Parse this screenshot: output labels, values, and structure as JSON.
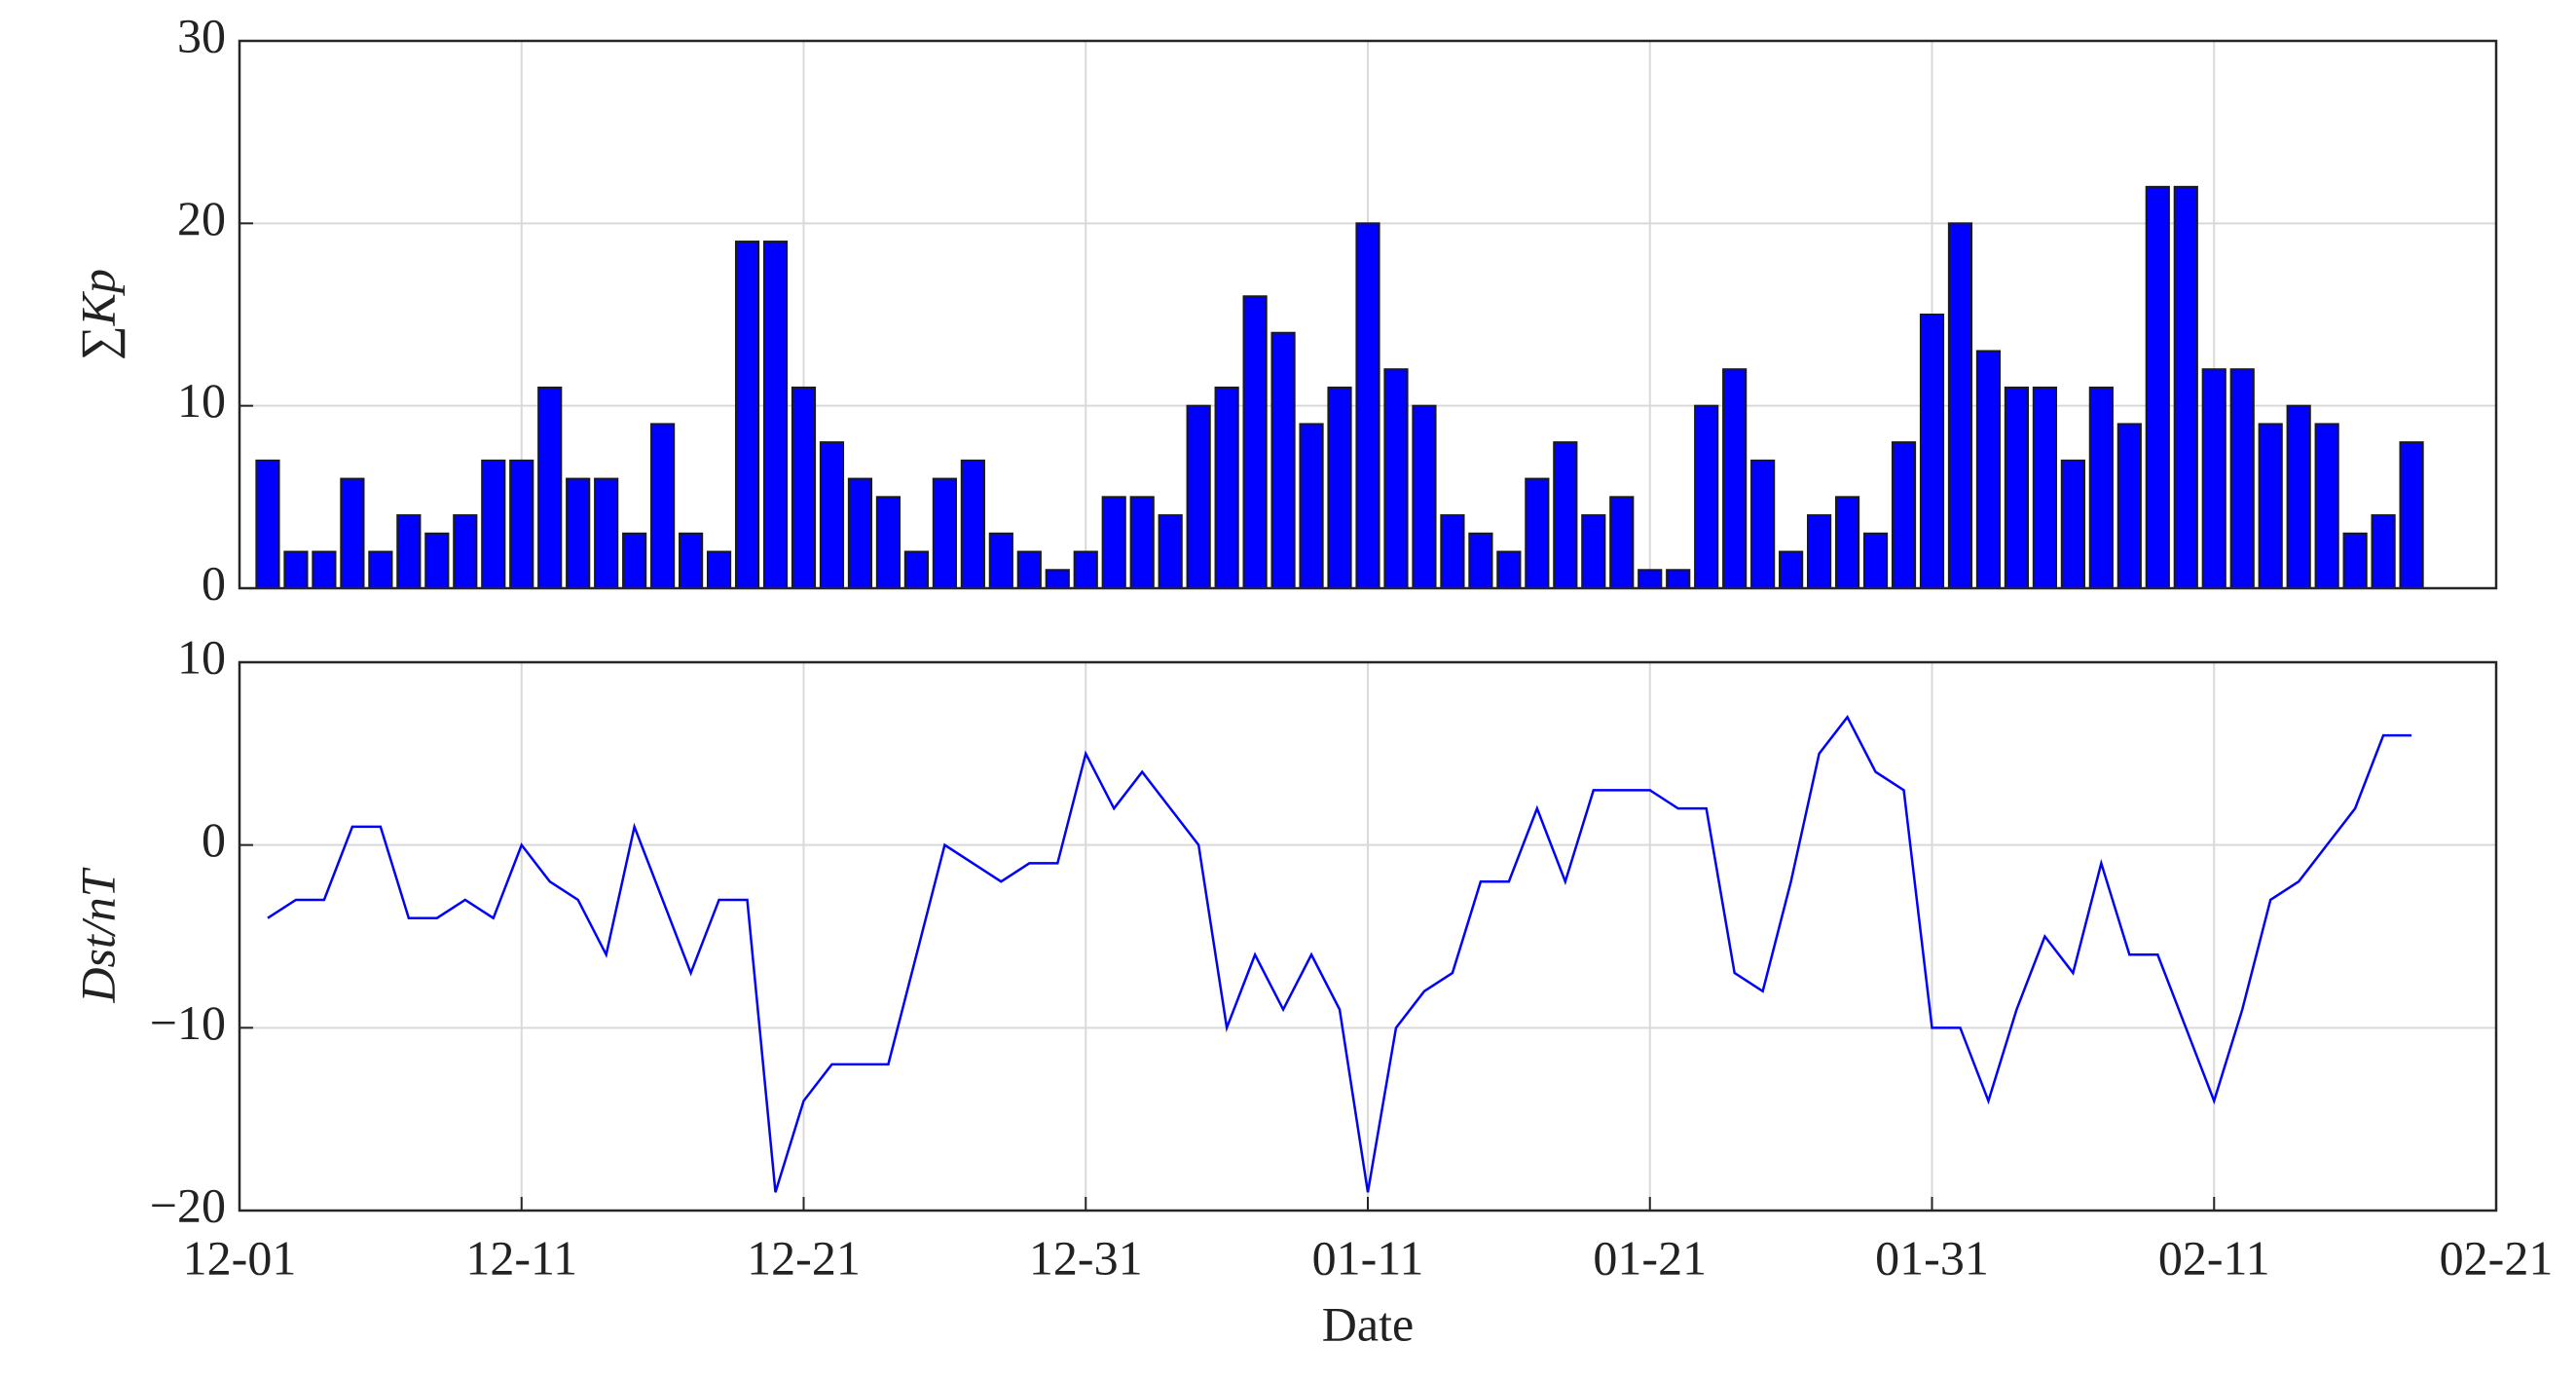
{
  "chart_data": [
    {
      "type": "bar",
      "ylabel": "∑Kp",
      "color": "#0000ff",
      "grid": true,
      "xlim": [
        0,
        80
      ],
      "ylim": [
        0,
        30
      ],
      "yticks": [
        0,
        10,
        20,
        30
      ],
      "x": [
        1,
        2,
        3,
        4,
        5,
        6,
        7,
        8,
        9,
        10,
        11,
        12,
        13,
        14,
        15,
        16,
        17,
        18,
        19,
        20,
        21,
        22,
        23,
        24,
        25,
        26,
        27,
        28,
        29,
        30,
        31,
        32,
        33,
        34,
        35,
        36,
        37,
        38,
        39,
        40,
        41,
        42,
        43,
        44,
        45,
        46,
        47,
        48,
        49,
        50,
        51,
        52,
        53,
        54,
        55,
        56,
        57,
        58,
        59,
        60,
        61,
        62,
        63,
        64,
        65,
        66,
        67,
        68,
        69,
        70,
        71,
        72,
        73,
        74,
        75,
        76,
        77
      ],
      "values": [
        7,
        2,
        2,
        6,
        2,
        4,
        3,
        4,
        7,
        7,
        11,
        6,
        6,
        3,
        9,
        3,
        2,
        19,
        19,
        11,
        8,
        6,
        5,
        2,
        6,
        7,
        3,
        2,
        1,
        2,
        5,
        5,
        4,
        10,
        11,
        16,
        14,
        9,
        11,
        20,
        12,
        10,
        4,
        3,
        2,
        6,
        8,
        4,
        5,
        1,
        1,
        10,
        12,
        7,
        2,
        4,
        5,
        3,
        8,
        15,
        20,
        13,
        11,
        11,
        7,
        11,
        9,
        22,
        22,
        12,
        12,
        9,
        10,
        9,
        3,
        4,
        8
      ]
    },
    {
      "type": "line",
      "ylabel": "Dst/nT",
      "xlabel": "Date",
      "color": "#0000ff",
      "grid": true,
      "xlim": [
        0,
        80
      ],
      "ylim": [
        -20,
        10
      ],
      "yticks": [
        {
          "value": -20,
          "label": "−20"
        },
        {
          "value": -10,
          "label": "−10"
        },
        0,
        10
      ],
      "xticks": [
        {
          "value": 0,
          "label": "12-01"
        },
        {
          "value": 10,
          "label": "12-11"
        },
        {
          "value": 20,
          "label": "12-21"
        },
        {
          "value": 30,
          "label": "12-31"
        },
        {
          "value": 40,
          "label": "01-11"
        },
        {
          "value": 50,
          "label": "01-21"
        },
        {
          "value": 60,
          "label": "01-31"
        },
        {
          "value": 70,
          "label": "02-11"
        },
        {
          "value": 80,
          "label": "02-21"
        }
      ],
      "x": [
        1,
        2,
        3,
        4,
        5,
        6,
        7,
        8,
        9,
        10,
        11,
        12,
        13,
        14,
        15,
        16,
        17,
        18,
        19,
        20,
        21,
        22,
        23,
        24,
        25,
        26,
        27,
        28,
        29,
        30,
        31,
        32,
        33,
        34,
        35,
        36,
        37,
        38,
        39,
        40,
        41,
        42,
        43,
        44,
        45,
        46,
        47,
        48,
        49,
        50,
        51,
        52,
        53,
        54,
        55,
        56,
        57,
        58,
        59,
        60,
        61,
        62,
        63,
        64,
        65,
        66,
        67,
        68,
        69,
        70,
        71,
        72,
        73,
        74,
        75,
        76,
        77
      ],
      "values": [
        -4,
        -3,
        -3,
        1,
        1,
        -4,
        -4,
        -3,
        -4,
        0,
        -2,
        -3,
        -6,
        1,
        -3,
        -7,
        -3,
        -3,
        -19,
        -14,
        -12,
        -12,
        -12,
        -6,
        0,
        -1,
        -2,
        -1,
        -1,
        5,
        2,
        4,
        2,
        0,
        -10,
        -6,
        -9,
        -6,
        -9,
        -19,
        -10,
        -8,
        -7,
        -2,
        -2,
        2,
        -2,
        3,
        3,
        3,
        2,
        2,
        -7,
        -8,
        -2,
        5,
        7,
        4,
        3,
        -10,
        -10,
        -14,
        -9,
        -5,
        -7,
        -1,
        -6,
        -6,
        -10,
        -14,
        -9,
        -3,
        -2,
        0,
        2,
        6,
        6
      ]
    }
  ]
}
